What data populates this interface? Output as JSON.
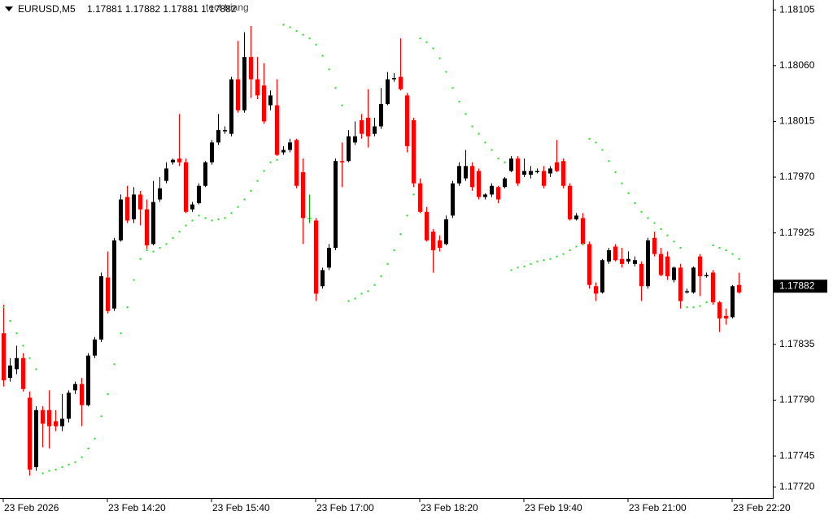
{
  "chart_data": {
    "type": "candlestick",
    "symbol": "EURUSD,M5",
    "quote": "1.17881 1.17882 1.17881 1.17882",
    "annotation": "tect triang",
    "categories": [
      "23 Feb 2026",
      null,
      null,
      null,
      null,
      null,
      null,
      null,
      null,
      null,
      null,
      null,
      null,
      null,
      null,
      null,
      "23 Feb 14:20",
      null,
      null,
      null,
      null,
      null,
      null,
      null,
      null,
      null,
      null,
      null,
      null,
      null,
      null,
      null,
      "23 Feb 15:40",
      null,
      null,
      null,
      null,
      null,
      null,
      null,
      null,
      null,
      null,
      null,
      null,
      null,
      null,
      null,
      "23 Feb 17:00",
      null,
      null,
      null,
      null,
      null,
      null,
      null,
      null,
      null,
      null,
      null,
      null,
      null,
      null,
      null,
      "23 Feb 18:20",
      null,
      null,
      null,
      null,
      null,
      null,
      null,
      null,
      null,
      null,
      null,
      null,
      null,
      null,
      null,
      "23 Feb 19:40",
      null,
      null,
      null,
      null,
      null,
      null,
      null,
      null,
      null,
      null,
      null,
      null,
      null,
      null,
      null,
      "23 Feb 21:00",
      null,
      null,
      null,
      null,
      null,
      null,
      null,
      null,
      null,
      null,
      null,
      null,
      null,
      null,
      null,
      "23 Feb 22:20",
      null
    ],
    "open": [
      1.17844,
      1.17808,
      1.17815,
      1.17824,
      1.17792,
      1.17736,
      1.17782,
      1.17782,
      1.17773,
      1.17769,
      1.17775,
      1.17798,
      1.17803,
      1.17786,
      1.17826,
      1.17839,
      1.17889,
      1.17864,
      1.17919,
      1.17954,
      1.17936,
      1.17956,
      1.17944,
      1.17916,
      1.17952,
      1.17967,
      1.17982,
      1.17985,
      1.17982,
      1.17944,
      1.17949,
      1.17963,
      1.17982,
      1.17998,
      1.18007,
      1.18005,
      1.18049,
      1.18024,
      1.18067,
      1.18049,
      1.18044,
      1.18028,
      1.18028,
      1.1799,
      1.17992,
      1.18,
      1.17974,
      1.17937,
      1.17935,
      1.17882,
      1.17897,
      1.17913,
      1.17983,
      1.17983,
      1.17998,
      1.18016,
      1.18018,
      1.18005,
      1.18011,
      1.18029,
      1.18049,
      1.18051,
      1.18036,
      1.18016,
      1.17965,
      1.17942,
      1.17926,
      1.17919,
      1.17916,
      1.17939,
      1.17965,
      1.17969,
      1.17979,
      1.17975,
      1.17954,
      1.17956,
      1.17962,
      1.17962,
      1.17975,
      1.17985,
      1.17972,
      1.17972,
      1.17974,
      1.17975,
      1.17973,
      1.17982,
      1.17983,
      1.17963,
      1.17936,
      1.17937,
      1.17916,
      1.17882,
      1.17877,
      1.17902,
      1.17914,
      1.17904,
      1.17902,
      1.179,
      1.179,
      1.17882,
      1.17921,
      1.17908,
      1.17906,
      1.17887,
      1.17897,
      1.17877,
      1.17877,
      1.17906,
      1.1789,
      1.17893,
      1.17869,
      1.17858,
      1.17857,
      1.17883
    ],
    "high": [
      1.17867,
      1.17824,
      1.17834,
      1.17828,
      1.17797,
      1.17785,
      1.17785,
      1.17798,
      1.17782,
      1.17795,
      1.17798,
      1.17805,
      1.17808,
      1.17828,
      1.17841,
      1.17893,
      1.1791,
      1.17921,
      1.17956,
      1.17963,
      1.17962,
      1.17959,
      1.17952,
      1.17967,
      1.1797,
      1.17982,
      1.17985,
      1.18021,
      1.17985,
      1.1795,
      1.17965,
      1.17983,
      1.18,
      1.18021,
      1.18011,
      1.18051,
      1.1808,
      1.18087,
      1.18092,
      1.18067,
      1.18062,
      1.1804,
      1.18049,
      1.17995,
      1.18001,
      1.18001,
      1.17985,
      1.17956,
      1.17937,
      1.17897,
      1.17916,
      1.17985,
      1.17998,
      1.18008,
      1.18015,
      1.18021,
      1.18041,
      1.18018,
      1.18042,
      1.18055,
      1.18054,
      1.18082,
      1.18038,
      1.18018,
      1.17969,
      1.17946,
      1.17928,
      1.17923,
      1.17939,
      1.17967,
      1.17982,
      1.17992,
      1.17982,
      1.17977,
      1.17957,
      1.17965,
      1.17963,
      1.1797,
      1.17987,
      1.17987,
      1.17985,
      1.17979,
      1.17977,
      1.17979,
      1.17979,
      1.18,
      1.17985,
      1.17965,
      1.17941,
      1.17941,
      1.17918,
      1.17885,
      1.17904,
      1.17913,
      1.17916,
      1.17913,
      1.1791,
      1.17906,
      1.17902,
      1.17921,
      1.17926,
      1.17913,
      1.1791,
      1.17898,
      1.179,
      1.1788,
      1.17898,
      1.17908,
      1.17893,
      1.17895,
      1.1787,
      1.17864,
      1.17883,
      1.17893
    ],
    "low": [
      1.17801,
      1.17805,
      1.17811,
      1.17797,
      1.17729,
      1.17733,
      1.17752,
      1.17751,
      1.17765,
      1.17765,
      1.17772,
      1.17795,
      1.17769,
      1.17785,
      1.17824,
      1.17837,
      1.1786,
      1.17862,
      1.17918,
      1.17933,
      1.17933,
      1.17931,
      1.17912,
      1.17915,
      1.1795,
      1.17965,
      1.1798,
      1.17979,
      1.17941,
      1.17942,
      1.17948,
      1.17962,
      1.1798,
      1.17996,
      1.18005,
      1.18003,
      1.18022,
      1.18022,
      1.18034,
      1.18033,
      1.18013,
      1.18024,
      1.17987,
      1.17988,
      1.1799,
      1.17961,
      1.17916,
      1.17933,
      1.1787,
      1.1788,
      1.17895,
      1.17911,
      1.17962,
      1.17982,
      1.17996,
      1.18001,
      1.17994,
      1.18003,
      1.18009,
      1.18028,
      1.18047,
      1.1804,
      1.1799,
      1.17962,
      1.17941,
      1.17918,
      1.17893,
      1.1791,
      1.17915,
      1.17937,
      1.17963,
      1.17967,
      1.17959,
      1.17952,
      1.17952,
      1.17954,
      1.17949,
      1.17961,
      1.17974,
      1.17963,
      1.1797,
      1.17969,
      1.17973,
      1.17961,
      1.1797,
      1.17974,
      1.17961,
      1.17935,
      1.17935,
      1.17915,
      1.1788,
      1.1787,
      1.17876,
      1.179,
      1.17902,
      1.17897,
      1.179,
      1.17898,
      1.1787,
      1.1788,
      1.17906,
      1.1789,
      1.17887,
      1.17885,
      1.17864,
      1.17876,
      1.17876,
      1.17874,
      1.17889,
      1.17867,
      1.17845,
      1.17851,
      1.17856,
      1.17876
    ],
    "close": [
      1.17806,
      1.17818,
      1.17824,
      1.17799,
      1.17734,
      1.17782,
      1.17771,
      1.17769,
      1.17769,
      1.17775,
      1.17796,
      1.17803,
      1.17786,
      1.17826,
      1.17839,
      1.1789,
      1.17862,
      1.17919,
      1.17952,
      1.17935,
      1.17956,
      1.17944,
      1.17915,
      1.1795,
      1.17961,
      1.17977,
      1.17984,
      1.17982,
      1.17942,
      1.17948,
      1.17963,
      1.17982,
      1.17998,
      1.18008,
      1.18008,
      1.18049,
      1.18024,
      1.18067,
      1.18049,
      1.18036,
      1.18015,
      1.18036,
      1.17988,
      1.17992,
      1.17998,
      1.17963,
      1.17937,
      1.17937,
      1.17876,
      1.17895,
      1.17913,
      1.17983,
      1.17982,
      1.18003,
      1.18003,
      1.18005,
      1.18003,
      1.18011,
      1.18029,
      1.18049,
      1.1805,
      1.18041,
      1.17995,
      1.17965,
      1.17942,
      1.17919,
      1.17911,
      1.17913,
      1.17936,
      1.17965,
      1.17979,
      1.17979,
      1.17962,
      1.17954,
      1.17956,
      1.17963,
      1.17952,
      1.17969,
      1.17985,
      1.17965,
      1.17975,
      1.17975,
      1.17975,
      1.17963,
      1.17977,
      1.17975,
      1.17963,
      1.17936,
      1.17939,
      1.17916,
      1.17883,
      1.17876,
      1.17903,
      1.17911,
      1.17903,
      1.179,
      1.17904,
      1.17903,
      1.17882,
      1.17919,
      1.17908,
      1.17891,
      1.1789,
      1.17897,
      1.1787,
      1.17878,
      1.17897,
      1.1789,
      1.17891,
      1.17869,
      1.17856,
      1.17856,
      1.17882,
      1.17877
    ],
    "sar": [
      1.17865,
      1.17854,
      1.17844,
      1.17834,
      1.17824,
      1.17815,
      1.17731,
      1.17733,
      1.17734,
      1.17736,
      1.17738,
      1.1774,
      1.17744,
      1.17751,
      1.17759,
      1.17777,
      1.17795,
      1.17819,
      1.17844,
      1.17865,
      1.17887,
      1.17904,
      1.17911,
      1.1791,
      1.17913,
      1.17916,
      1.17921,
      1.17926,
      1.17931,
      1.17935,
      1.17939,
      1.17937,
      1.17935,
      1.17936,
      1.17937,
      1.17941,
      1.17946,
      1.17952,
      1.17959,
      1.17967,
      1.17975,
      1.17982,
      1.17984,
      1.18093,
      1.18091,
      1.18088,
      1.18085,
      1.18082,
      1.18077,
      1.18068,
      1.18057,
      1.18042,
      1.18028,
      1.1787,
      1.17872,
      1.17876,
      1.17878,
      1.17883,
      1.1789,
      1.179,
      1.17911,
      1.17924,
      1.17939,
      1.17956,
      1.18082,
      1.18079,
      1.18074,
      1.18066,
      1.18055,
      1.18042,
      1.18031,
      1.18021,
      1.18011,
      1.18005,
      1.17998,
      1.17992,
      1.17985,
      1.17982,
      1.17895,
      1.17897,
      1.17898,
      1.179,
      1.17902,
      1.17903,
      1.17904,
      1.17906,
      1.17908,
      1.17911,
      1.17914,
      1.17916,
      1.18001,
      1.17998,
      1.17992,
      1.17983,
      1.17974,
      1.17965,
      1.17957,
      1.17949,
      1.17942,
      1.17937,
      1.17933,
      1.17928,
      1.17923,
      1.17918,
      1.17913,
      1.17865,
      1.17865,
      1.17866,
      1.17869,
      1.17915,
      1.17913,
      1.17911,
      1.17908,
      1.17904
    ],
    "up_color": "#000000",
    "down_color": "#ff0000",
    "doji_color": "#00b000",
    "sar_color": "#22dd22",
    "current_price": 1.17882,
    "ylim": [
      1.17711,
      1.18113
    ],
    "yticks": [
      1.18105,
      {
        "value": 1.1806,
        "label": "1.18060"
      },
      1.18015,
      {
        "value": 1.1797,
        "label": "1.17970"
      },
      1.17925,
      1.17835,
      {
        "value": 1.1779,
        "label": "1.17790"
      },
      1.17745,
      {
        "value": 1.1772,
        "label": "1.17720"
      }
    ]
  }
}
